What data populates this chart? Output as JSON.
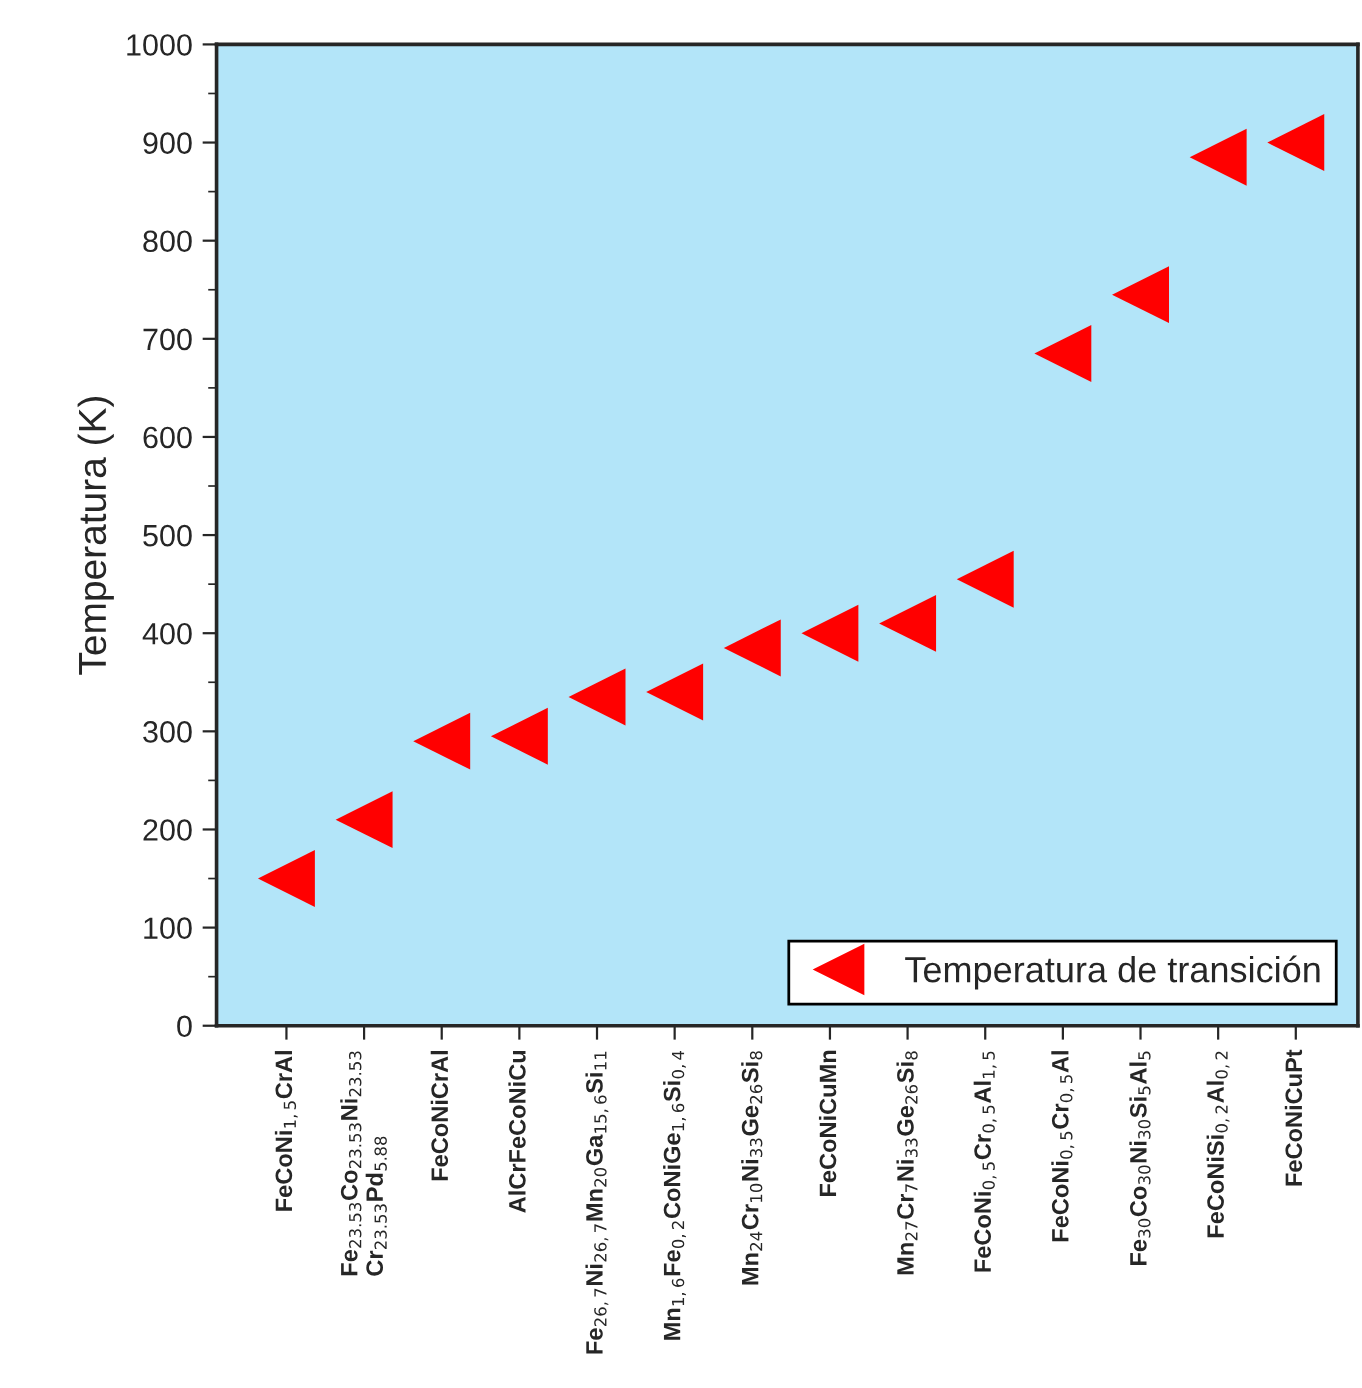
{
  "chart_data": {
    "type": "scatter",
    "ylabel": "Temperatura (K)",
    "categories": [
      "FeCoNi$_{1,5}$CrAl",
      "Fe$_{23.53}$Co$_{23.53}$Ni$_{23.53}$\nCr$_{23.53}$Pd$_{5.88}$",
      "FeCoNiCrAl",
      "AlCrFeCoNiCu",
      "Fe$_{26,7}$Ni$_{26,7}$Mn$_{20}$Ga$_{15,6}$Si$_{11}$",
      "Mn$_{1,6}$Fe$_{0,2}$CoNiGe$_{1,6}$Si$_{0,4}$",
      "Mn$_{24}$Cr$_{10}$Ni$_{33}$Ge$_{26}$Si$_{8}$",
      "FeCoNiCuMn",
      "Mn$_{27}$Cr$_{7}$Ni$_{33}$Ge$_{26}$Si$_{8}$",
      "FeCoNi$_{0,5}$Cr$_{0,5}$Al$_{1,5}$",
      "FeCoNi$_{0,5}$Cr$_{0,5}$Al",
      "Fe$_{30}$Co$_{30}$Ni$_{30}$Si$_{5}$Al$_{5}$",
      "FeCoNiSi$_{0,2}$Al$_{0,2}$",
      "FeCoNiCuPt"
    ],
    "series": [
      {
        "name": "Temperatura de transición",
        "color": "#ff0000",
        "values": [
          150,
          210,
          290,
          295,
          335,
          340,
          385,
          400,
          410,
          455,
          685,
          745,
          885,
          900
        ]
      }
    ],
    "ylim": [
      0,
      1000
    ],
    "yticks": [
      0,
      100,
      200,
      300,
      400,
      500,
      600,
      700,
      800,
      900,
      1000
    ],
    "marker": "triangle",
    "legend": "bottom right",
    "grid": false
  }
}
